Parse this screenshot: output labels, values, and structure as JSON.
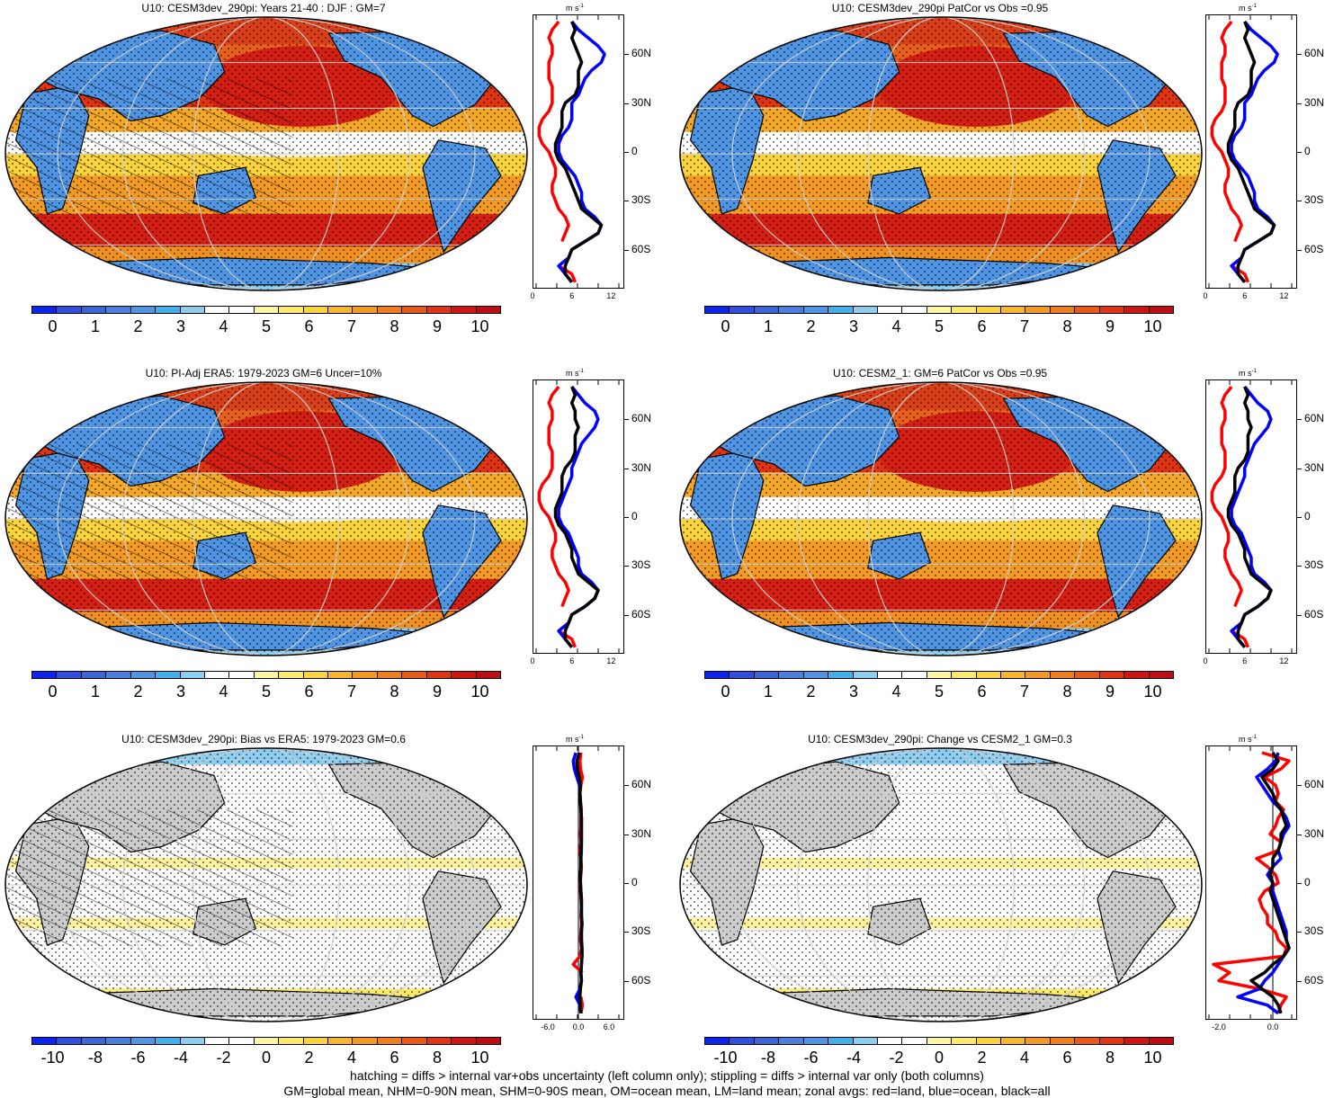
{
  "footer": {
    "line1": "hatching = diffs > internal var+obs uncertainty (left column only); stippling = diffs > internal var only (both columns)",
    "line2": "GM=global mean, NHM=0-90N mean, SHM=0-90S mean, OM=ocean mean, LM=land mean; zonal avgs: red=land, blue=ocean, black=all"
  },
  "colors": {
    "abs_scale": [
      "#0b24f0",
      "#2f4fe0",
      "#3b66d8",
      "#4b7fdd",
      "#4f95e3",
      "#43b0ee",
      "#8ccdf0",
      "#ffffff",
      "#ffffff",
      "#fff7a0",
      "#fde96a",
      "#fbd33b",
      "#f8b62c",
      "#f29a22",
      "#ee7f1c",
      "#e85a16",
      "#e03412",
      "#cf1412",
      "#bd0d12"
    ],
    "diff_scale": [
      "#0b24f0",
      "#2f4fe0",
      "#3b66d8",
      "#4b7fdd",
      "#4f95e3",
      "#43b0ee",
      "#8ccdf0",
      "#ffffff",
      "#ffffff",
      "#fff7a0",
      "#fde96a",
      "#fbd33b",
      "#f8b62c",
      "#f29a22",
      "#ee7f1c",
      "#e85a16",
      "#e03412",
      "#cf1412",
      "#bd0d12"
    ],
    "land": "#cccccc",
    "line_land": "#ff0000",
    "line_ocean": "#0000ff",
    "line_all": "#000000"
  },
  "profile_lat_ticks": [
    "60N",
    "30N",
    "0",
    "30S",
    "60S"
  ],
  "profile_units": "m s",
  "profile_units_sup": "-1",
  "chart_data": [
    {
      "type": "heatmap",
      "title": "U10: CESM3dev_290pi: Years 21-40 : DJF : GM=7",
      "colorbar_labels": [
        "0",
        "1",
        "2",
        "3",
        "4",
        "5",
        "6",
        "7",
        "8",
        "9",
        "10"
      ],
      "hatching": true,
      "profile_x_ticks": [
        "0",
        "6",
        "12"
      ],
      "profile_xlim": [
        0,
        14
      ],
      "profile_lat": [
        80,
        75,
        70,
        65,
        60,
        55,
        50,
        45,
        40,
        35,
        30,
        25,
        20,
        15,
        10,
        5,
        0,
        -5,
        -10,
        -15,
        -20,
        -25,
        -30,
        -35,
        -40,
        -45,
        -50,
        -55,
        -60,
        -65,
        -70,
        -75,
        -80
      ],
      "profile_land": [
        4,
        3,
        2.5,
        3,
        3,
        2.5,
        2.5,
        2.5,
        3,
        3,
        3,
        2.5,
        1.5,
        1,
        1,
        1.5,
        2.5,
        3,
        3.5,
        3.5,
        3,
        3,
        3.5,
        4,
        5,
        5.5,
        5,
        4.5,
        null,
        null,
        4,
        6,
        6.5
      ],
      "profile_ocean": [
        6,
        7,
        8.5,
        10,
        11,
        10.5,
        9,
        8,
        7.5,
        7,
        6,
        6,
        6,
        5.5,
        4.5,
        4,
        4,
        4.5,
        5.5,
        6.5,
        7,
        7.5,
        7.5,
        8,
        9.5,
        10.5,
        10,
        8,
        6,
        5.5,
        4,
        5,
        6
      ],
      "profile_all": [
        6,
        6.5,
        6,
        6.5,
        7,
        7.5,
        7,
        7,
        7,
        6.5,
        5,
        4.5,
        4.5,
        4.5,
        4,
        3.5,
        3.5,
        4,
        5,
        5.5,
        6,
        6.5,
        7,
        7.5,
        9,
        10.5,
        10,
        8,
        6,
        5.5,
        5,
        5,
        6
      ]
    },
    {
      "type": "heatmap",
      "title": "U10: CESM3dev_290pi PatCor vs Obs =0.95",
      "colorbar_labels": [
        "0",
        "1",
        "2",
        "3",
        "4",
        "5",
        "6",
        "7",
        "8",
        "9",
        "10"
      ],
      "hatching": false,
      "profile_x_ticks": [
        "0",
        "6",
        "12"
      ],
      "profile_xlim": [
        0,
        14
      ],
      "profile_lat": [
        80,
        75,
        70,
        65,
        60,
        55,
        50,
        45,
        40,
        35,
        30,
        25,
        20,
        15,
        10,
        5,
        0,
        -5,
        -10,
        -15,
        -20,
        -25,
        -30,
        -35,
        -40,
        -45,
        -50,
        -55,
        -60,
        -65,
        -70,
        -75,
        -80
      ],
      "profile_land": [
        4,
        3,
        2.5,
        3,
        3,
        2.5,
        2.5,
        2.5,
        3,
        3,
        3,
        2.5,
        1.5,
        1,
        1,
        1.5,
        2.5,
        3,
        3.5,
        3.5,
        3,
        3,
        3.5,
        4,
        5,
        5.5,
        5,
        4.5,
        null,
        null,
        4,
        6,
        6.5
      ],
      "profile_ocean": [
        6,
        7,
        8.5,
        10,
        11,
        10.5,
        9,
        8,
        7.5,
        7,
        6,
        6,
        6,
        5.5,
        4.5,
        4,
        4,
        4.5,
        5.5,
        6.5,
        7,
        7.5,
        7.5,
        8,
        9.5,
        10.5,
        10,
        8,
        6,
        5.5,
        4,
        5,
        6
      ],
      "profile_all": [
        6,
        6.5,
        6,
        6.5,
        7,
        7.5,
        7,
        7,
        7,
        6.5,
        5,
        4.5,
        4.5,
        4.5,
        4,
        3.5,
        3.5,
        4,
        5,
        5.5,
        6,
        6.5,
        7,
        7.5,
        9,
        10.5,
        10,
        8,
        6,
        5.5,
        5,
        5,
        6
      ]
    },
    {
      "type": "heatmap",
      "title": "U10: PI-Adj ERA5: 1979-2023 GM=6 Uncer=10%",
      "colorbar_labels": [
        "0",
        "1",
        "2",
        "3",
        "4",
        "5",
        "6",
        "7",
        "8",
        "9",
        "10"
      ],
      "hatching": true,
      "profile_x_ticks": [
        "0",
        "6",
        "12"
      ],
      "profile_xlim": [
        0,
        14
      ],
      "profile_lat": [
        80,
        75,
        70,
        65,
        60,
        55,
        50,
        45,
        40,
        35,
        30,
        25,
        20,
        15,
        10,
        5,
        0,
        -5,
        -10,
        -15,
        -20,
        -25,
        -30,
        -35,
        -40,
        -45,
        -50,
        -55,
        -60,
        -65,
        -70,
        -75,
        -80
      ],
      "profile_land": [
        4,
        3,
        2.5,
        3,
        3,
        2.5,
        2.5,
        2.5,
        3,
        3,
        3,
        2.5,
        1.5,
        1,
        1,
        1.5,
        2.5,
        3,
        3.5,
        3.5,
        3,
        3,
        3.5,
        4,
        5,
        5.5,
        5,
        4.5,
        null,
        null,
        4,
        6,
        6.5
      ],
      "profile_ocean": [
        6,
        7,
        8,
        9.5,
        10,
        9.5,
        8.5,
        7.5,
        7,
        6.5,
        6,
        6,
        5.5,
        5,
        4.5,
        4,
        4,
        4.5,
        5.5,
        6,
        6.5,
        7,
        7,
        7.5,
        9,
        10,
        9.5,
        8,
        6,
        5.5,
        4,
        5,
        6
      ],
      "profile_all": [
        6,
        6.5,
        6,
        6.5,
        6.5,
        7,
        6.5,
        6.5,
        6.5,
        6,
        5,
        4.5,
        4.5,
        4.5,
        4,
        3.5,
        3.5,
        4,
        5,
        5.5,
        6,
        6,
        6.5,
        7,
        8.5,
        10,
        9.5,
        8,
        6,
        5.5,
        5,
        5,
        6
      ]
    },
    {
      "type": "heatmap",
      "title": "U10: CESM2_1: GM=6 PatCor vs Obs =0.95",
      "colorbar_labels": [
        "0",
        "1",
        "2",
        "3",
        "4",
        "5",
        "6",
        "7",
        "8",
        "9",
        "10"
      ],
      "hatching": false,
      "profile_x_ticks": [
        "0",
        "6",
        "12"
      ],
      "profile_xlim": [
        0,
        14
      ],
      "profile_lat": [
        80,
        75,
        70,
        65,
        60,
        55,
        50,
        45,
        40,
        35,
        30,
        25,
        20,
        15,
        10,
        5,
        0,
        -5,
        -10,
        -15,
        -20,
        -25,
        -30,
        -35,
        -40,
        -45,
        -50,
        -55,
        -60,
        -65,
        -70,
        -75,
        -80
      ],
      "profile_land": [
        4,
        3,
        2.5,
        3,
        3,
        2.5,
        2.5,
        2.5,
        3,
        3,
        3,
        2.5,
        1.5,
        1,
        1,
        1.5,
        2.5,
        3,
        3.5,
        3.5,
        3,
        3,
        3.5,
        4,
        5,
        5.5,
        5,
        4.5,
        null,
        null,
        4,
        6,
        6.5
      ],
      "profile_ocean": [
        6,
        7,
        8,
        9.5,
        10,
        9.5,
        8.5,
        7.5,
        7,
        6.5,
        6,
        6,
        5.5,
        5,
        4.5,
        4,
        4,
        4.5,
        5.5,
        6,
        6.5,
        7,
        7,
        7.5,
        9,
        10,
        9.5,
        8,
        6,
        5.5,
        4,
        5,
        6
      ],
      "profile_all": [
        6,
        6.5,
        6,
        6.5,
        6.5,
        7,
        6.5,
        6.5,
        6.5,
        6,
        5,
        4.5,
        4.5,
        4.5,
        4,
        3.5,
        3.5,
        4,
        5,
        5.5,
        6,
        6,
        6.5,
        7,
        8.5,
        10,
        9.5,
        8,
        6,
        5.5,
        5,
        5,
        6
      ]
    },
    {
      "type": "heatmap",
      "title": "U10: CESM3dev_290pi: Bias vs ERA5: 1979-2023 GM=0.6",
      "colorbar_labels": [
        "-10",
        "-8",
        "-6",
        "-4",
        "-2",
        "0",
        "2",
        "4",
        "6",
        "8",
        "10"
      ],
      "hatching": true,
      "profile_x_ticks": [
        "-6.0",
        "0.0",
        "6.0"
      ],
      "profile_xlim": [
        -9,
        9
      ],
      "profile_lat": [
        80,
        75,
        70,
        65,
        60,
        55,
        50,
        45,
        40,
        35,
        30,
        25,
        20,
        15,
        10,
        5,
        0,
        -5,
        -10,
        -15,
        -20,
        -25,
        -30,
        -35,
        -40,
        -45,
        -50,
        -55,
        -60,
        -65,
        -70,
        -75,
        -80
      ],
      "profile_land": [
        0.5,
        0.3,
        0.4,
        0.8,
        0.5,
        0.3,
        0.4,
        0.6,
        0.5,
        0.5,
        0.4,
        0.5,
        0.3,
        0.5,
        0.6,
        0.5,
        0.3,
        0.4,
        0.5,
        0.6,
        0.5,
        0.6,
        0.5,
        0.4,
        0.6,
        0.3,
        -1,
        0.8,
        null,
        null,
        0.5,
        0.8,
        0.5
      ],
      "profile_ocean": [
        -0.5,
        -1,
        -0.8,
        -0.3,
        0.2,
        0.3,
        0.4,
        0.5,
        0.6,
        0.6,
        0.6,
        0.6,
        0.6,
        0.5,
        0.5,
        0.4,
        0.4,
        0.5,
        0.6,
        0.6,
        0.6,
        0.7,
        0.6,
        0.6,
        0.7,
        0.7,
        0.6,
        0.5,
        0.6,
        0.3,
        -0.5,
        0.3,
        0.5
      ],
      "profile_all": [
        0.2,
        -0.3,
        -0.2,
        0.2,
        0.4,
        0.3,
        0.4,
        0.5,
        0.6,
        0.6,
        0.6,
        0.6,
        0.5,
        0.5,
        0.5,
        0.4,
        0.4,
        0.5,
        0.6,
        0.6,
        0.6,
        0.7,
        0.6,
        0.6,
        0.7,
        0.7,
        0.6,
        0.5,
        0.6,
        0.4,
        0.3,
        0.4,
        0.5
      ]
    },
    {
      "type": "heatmap",
      "title": "U10: CESM3dev_290pi: Change vs CESM2_1 GM=0.3",
      "colorbar_labels": [
        "-10",
        "-8",
        "-6",
        "-4",
        "-2",
        "0",
        "2",
        "4",
        "6",
        "8",
        "10"
      ],
      "hatching": false,
      "profile_x_ticks": [
        "-2.0",
        "0.0"
      ],
      "profile_xlim": [
        -2.5,
        0.9
      ],
      "profile_lat": [
        80,
        75,
        70,
        65,
        60,
        55,
        50,
        45,
        40,
        35,
        30,
        25,
        20,
        15,
        10,
        5,
        0,
        -5,
        -10,
        -15,
        -20,
        -25,
        -30,
        -35,
        -40,
        -45,
        -50,
        -55,
        -60,
        -65,
        -70,
        -75,
        -80
      ],
      "profile_land": [
        -0.4,
        0.6,
        0.3,
        -0.3,
        0.1,
        0.2,
        0.1,
        0.4,
        0.2,
        0.1,
        -0.1,
        0.3,
        0.2,
        -0.6,
        -0.2,
        0.1,
        0.2,
        -0.3,
        -0.5,
        -0.4,
        -0.2,
        -0.2,
        0.1,
        0.2,
        0.5,
        0.4,
        -2.2,
        -1.6,
        -2.0,
        -0.5,
        0.5,
        0.3,
        0.2
      ],
      "profile_ocean": [
        0.2,
        0.1,
        -0.2,
        -0.6,
        -0.4,
        -0.2,
        0,
        0.3,
        0.5,
        0.6,
        0.4,
        0.3,
        0.2,
        0.3,
        0,
        -0.2,
        0,
        0,
        0.1,
        0.2,
        0.3,
        0.4,
        0.5,
        0.5,
        0.6,
        0.4,
        0.2,
        0,
        -0.3,
        -0.5,
        -1.3,
        -0.2,
        0.2
      ],
      "profile_all": [
        0,
        0.2,
        0,
        -0.4,
        -0.2,
        0,
        0.1,
        0.3,
        0.4,
        0.5,
        0.3,
        0.3,
        0.2,
        0,
        0,
        -0.1,
        0,
        -0.1,
        0,
        0.1,
        0.2,
        0.3,
        0.4,
        0.5,
        0.6,
        0.4,
        0,
        -0.3,
        -0.8,
        -0.4,
        0,
        0.2,
        0.3
      ]
    }
  ]
}
